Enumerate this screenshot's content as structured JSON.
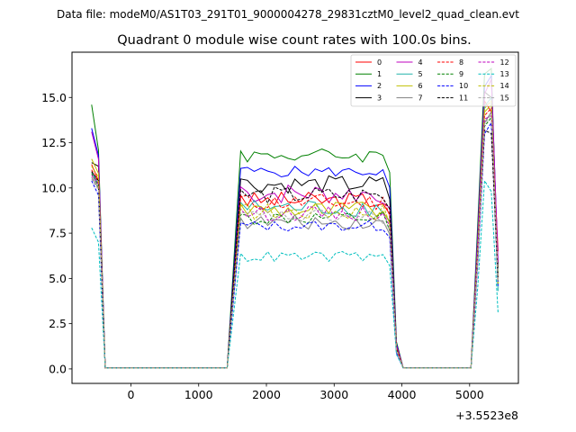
{
  "suptitle": "Data file: modeM0/AS1T03_291T01_9000004278_29831cztM0_level2_quad_clean.evt",
  "chart_data": {
    "type": "line",
    "title": "Quadrant 0 module wise count rates with 100.0s bins.",
    "xlabel": "",
    "ylabel": "",
    "x_offset_label": "+3.5523e8",
    "xlim": [
      -870,
      5720
    ],
    "ylim": [
      -0.8,
      17.5
    ],
    "xticks": [
      0,
      1000,
      2000,
      3000,
      4000,
      5000
    ],
    "yticks": [
      0.0,
      2.5,
      5.0,
      7.5,
      10.0,
      12.5,
      15.0
    ],
    "ytick_labels": [
      "0.0",
      "2.5",
      "5.0",
      "7.5",
      "10.0",
      "12.5",
      "15.0"
    ],
    "grid": false,
    "legend_position": "top-right",
    "legend_columns": 4,
    "segments": [
      {
        "x_start": -580,
        "x_end": -380
      },
      {
        "x_start": -380,
        "x_end": 1420,
        "value": 0
      },
      {
        "x_start": 1420,
        "x_end": 1620
      },
      {
        "x_start": 1620,
        "x_end": 3820
      },
      {
        "x_start": 3820,
        "x_end": 4020
      },
      {
        "x_start": 4020,
        "x_end": 5020,
        "value": 0
      },
      {
        "x_start": 5020,
        "x_end": 5220
      },
      {
        "x_start": 5220,
        "x_end": 5420
      }
    ],
    "series": [
      {
        "name": "0",
        "color": "#ff0000",
        "dashed": false,
        "edge_start": [
          11.3,
          10.4,
          0.05
        ],
        "plateau_mean": 9.3,
        "plateau_amp": 0.5,
        "edge_end": [
          1.2,
          0.05
        ],
        "edge_third": [
          0.05,
          6.0
        ],
        "peak": [
          14.8,
          14.2,
          6.5
        ]
      },
      {
        "name": "1",
        "color": "#008000",
        "dashed": false,
        "edge_start": [
          14.6,
          12.1,
          0.05
        ],
        "plateau_mean": 11.8,
        "plateau_amp": 0.4,
        "edge_end": [
          1.5,
          0.05
        ],
        "edge_third": [
          0.05,
          8.0
        ],
        "peak": [
          16.3,
          16.6,
          5.2
        ]
      },
      {
        "name": "2",
        "color": "#0000ff",
        "dashed": false,
        "edge_start": [
          13.3,
          11.8,
          0.05
        ],
        "plateau_mean": 10.9,
        "plateau_amp": 0.3,
        "edge_end": [
          1.4,
          0.05
        ],
        "edge_third": [
          0.05,
          7.5
        ],
        "peak": [
          15.6,
          16.2,
          5.8
        ]
      },
      {
        "name": "3",
        "color": "#000000",
        "dashed": false,
        "edge_start": [
          11.4,
          11.2,
          0.05
        ],
        "plateau_mean": 10.2,
        "plateau_amp": 0.5,
        "edge_end": [
          1.3,
          0.05
        ],
        "edge_third": [
          0.05,
          7.0
        ],
        "peak": [
          15.3,
          15.0,
          5.6
        ]
      },
      {
        "name": "4",
        "color": "#bf00bf",
        "dashed": false,
        "edge_start": [
          13.1,
          11.6,
          0.05
        ],
        "plateau_mean": 9.7,
        "plateau_amp": 0.6,
        "edge_end": [
          1.3,
          0.05
        ],
        "edge_third": [
          0.05,
          7.2
        ],
        "peak": [
          15.2,
          16.0,
          5.9
        ]
      },
      {
        "name": "5",
        "color": "#20b2aa",
        "dashed": false,
        "edge_start": [
          10.9,
          10.2,
          0.05
        ],
        "plateau_mean": 8.9,
        "plateau_amp": 0.5,
        "edge_end": [
          1.1,
          0.05
        ],
        "edge_third": [
          0.05,
          6.5
        ],
        "peak": [
          14.5,
          15.0,
          4.3
        ]
      },
      {
        "name": "6",
        "color": "#bfbf00",
        "dashed": false,
        "edge_start": [
          11.6,
          10.8,
          0.05
        ],
        "plateau_mean": 8.8,
        "plateau_amp": 0.5,
        "edge_end": [
          1.1,
          0.05
        ],
        "edge_third": [
          0.05,
          6.6
        ],
        "peak": [
          14.2,
          14.6,
          5.0
        ]
      },
      {
        "name": "7",
        "color": "#808080",
        "dashed": false,
        "edge_start": [
          10.6,
          10.0,
          0.05
        ],
        "plateau_mean": 8.1,
        "plateau_amp": 0.4,
        "edge_end": [
          1.0,
          0.05
        ],
        "edge_third": [
          0.05,
          6.2
        ],
        "peak": [
          13.6,
          14.2,
          4.8
        ]
      },
      {
        "name": "8",
        "color": "#ff0000",
        "dashed": true,
        "edge_start": [
          11.0,
          10.3,
          0.05
        ],
        "plateau_mean": 9.2,
        "plateau_amp": 0.5,
        "edge_end": [
          1.2,
          0.05
        ],
        "edge_third": [
          0.05,
          6.4
        ],
        "peak": [
          14.0,
          14.4,
          5.1
        ]
      },
      {
        "name": "9",
        "color": "#008000",
        "dashed": true,
        "edge_start": [
          10.8,
          10.1,
          0.05
        ],
        "plateau_mean": 8.3,
        "plateau_amp": 0.4,
        "edge_end": [
          1.0,
          0.05
        ],
        "edge_third": [
          0.05,
          6.0
        ],
        "peak": [
          13.4,
          13.9,
          4.6
        ]
      },
      {
        "name": "10",
        "color": "#0000ff",
        "dashed": true,
        "edge_start": [
          10.4,
          9.6,
          0.05
        ],
        "plateau_mean": 7.9,
        "plateau_amp": 0.3,
        "edge_end": [
          0.9,
          0.05
        ],
        "edge_third": [
          0.05,
          5.8
        ],
        "peak": [
          13.0,
          13.6,
          4.5
        ]
      },
      {
        "name": "11",
        "color": "#000000",
        "dashed": true,
        "edge_start": [
          10.9,
          10.4,
          0.05
        ],
        "plateau_mean": 9.6,
        "plateau_amp": 0.5,
        "edge_end": [
          1.1,
          0.05
        ],
        "edge_third": [
          0.05,
          6.4
        ],
        "peak": [
          13.2,
          13.0,
          5.0
        ]
      },
      {
        "name": "12",
        "color": "#bf00bf",
        "dashed": true,
        "edge_start": [
          10.7,
          10.2,
          0.05
        ],
        "plateau_mean": 8.6,
        "plateau_amp": 0.4,
        "edge_end": [
          1.0,
          0.05
        ],
        "edge_third": [
          0.05,
          6.1
        ],
        "peak": [
          13.8,
          14.0,
          4.9
        ]
      },
      {
        "name": "13",
        "color": "#00bfbf",
        "dashed": true,
        "edge_start": [
          7.8,
          7.0,
          0.05
        ],
        "plateau_mean": 6.2,
        "plateau_amp": 0.3,
        "edge_end": [
          0.8,
          0.05
        ],
        "edge_third": [
          0.05,
          4.5
        ],
        "peak": [
          10.4,
          9.8,
          3.1
        ]
      },
      {
        "name": "14",
        "color": "#bfbf00",
        "dashed": true,
        "edge_start": [
          11.2,
          10.6,
          0.05
        ],
        "plateau_mean": 8.7,
        "plateau_amp": 0.5,
        "edge_end": [
          1.1,
          0.05
        ],
        "edge_third": [
          0.05,
          6.3
        ],
        "peak": [
          14.4,
          14.8,
          4.7
        ]
      },
      {
        "name": "15",
        "color": "#a9a9a9",
        "dashed": true,
        "edge_start": [
          10.5,
          9.9,
          0.05
        ],
        "plateau_mean": 8.4,
        "plateau_amp": 0.4,
        "edge_end": [
          1.0,
          0.05
        ],
        "edge_third": [
          0.05,
          6.0
        ],
        "peak": [
          13.5,
          14.1,
          4.9
        ]
      }
    ]
  }
}
